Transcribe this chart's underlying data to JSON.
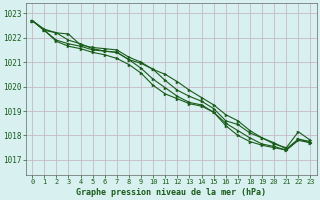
{
  "title": "Graphe pression niveau de la mer (hPa)",
  "background_color": "#d8f0f0",
  "grid_color": "#c8b8c8",
  "line_color": "#1a5c1a",
  "text_color": "#1a5c1a",
  "xlim": [
    -0.5,
    23.5
  ],
  "ylim": [
    1016.4,
    1023.4
  ],
  "yticks": [
    1017,
    1018,
    1019,
    1020,
    1021,
    1022,
    1023
  ],
  "xticks": [
    0,
    1,
    2,
    3,
    4,
    5,
    6,
    7,
    8,
    9,
    10,
    11,
    12,
    13,
    14,
    15,
    16,
    17,
    18,
    19,
    20,
    21,
    22,
    23
  ],
  "series": [
    [
      1022.7,
      1022.35,
      1022.2,
      1021.9,
      1021.75,
      1021.55,
      1021.45,
      1021.4,
      1021.1,
      1020.95,
      1020.7,
      1020.25,
      1019.85,
      1019.6,
      1019.4,
      1019.1,
      1018.6,
      1018.45,
      1018.1,
      1017.9,
      1017.7,
      1017.45,
      1017.85,
      1017.75
    ],
    [
      1022.7,
      1022.3,
      1021.85,
      1021.65,
      1021.55,
      1021.4,
      1021.3,
      1021.15,
      1020.9,
      1020.55,
      1020.05,
      1019.7,
      1019.5,
      1019.3,
      1019.2,
      1018.95,
      1018.4,
      1018.0,
      1017.75,
      1017.6,
      1017.5,
      1017.4,
      1017.8,
      1017.7
    ],
    [
      1022.7,
      1022.3,
      1021.9,
      1021.75,
      1021.65,
      1021.5,
      1021.45,
      1021.4,
      1021.1,
      1020.75,
      1020.3,
      1019.95,
      1019.6,
      1019.35,
      1019.25,
      1018.95,
      1018.5,
      1018.2,
      1017.9,
      1017.65,
      1017.55,
      1017.4,
      1017.85,
      1017.7
    ],
    [
      1022.7,
      1022.3,
      1022.2,
      1022.15,
      1021.7,
      1021.6,
      1021.55,
      1021.5,
      1021.2,
      1021.0,
      1020.7,
      1020.5,
      1020.2,
      1019.85,
      1019.55,
      1019.25,
      1018.85,
      1018.6,
      1018.2,
      1017.9,
      1017.65,
      1017.5,
      1018.15,
      1017.8
    ]
  ]
}
